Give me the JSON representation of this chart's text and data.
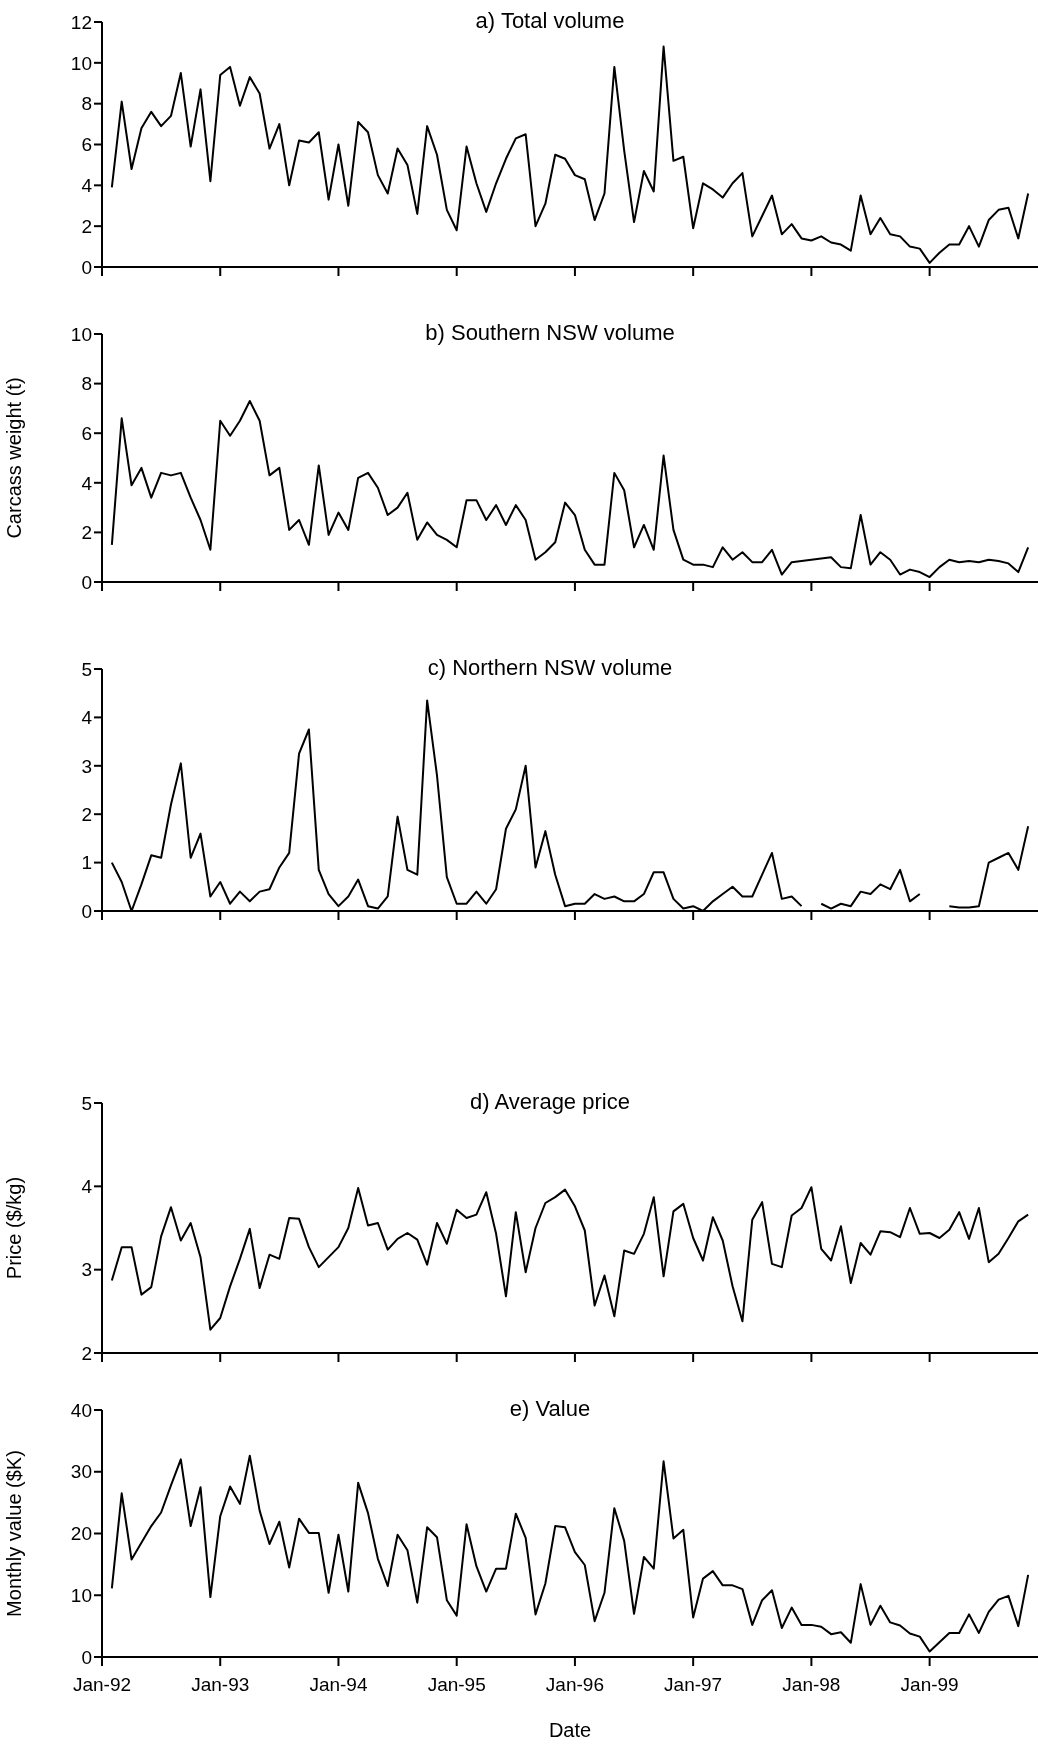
{
  "chart_data": [
    {
      "type": "line",
      "title": "a) Total volume",
      "color": "#000000",
      "tick_labels": "y",
      "x": [
        "1992-02",
        "1992-03",
        "1992-04",
        "1992-05",
        "1992-06",
        "1992-07",
        "1992-08",
        "1992-09",
        "1992-10",
        "1992-11",
        "1992-12",
        "1993-01",
        "1993-02",
        "1993-03",
        "1993-04",
        "1993-05",
        "1993-06",
        "1993-07",
        "1993-08",
        "1993-09",
        "1993-10",
        "1993-11",
        "1993-12",
        "1994-01",
        "1994-02",
        "1994-03",
        "1994-04",
        "1994-05",
        "1994-06",
        "1994-07",
        "1994-08",
        "1994-09",
        "1994-10",
        "1994-11",
        "1994-12",
        "1995-01",
        "1995-02",
        "1995-03",
        "1995-04",
        "1995-05",
        "1995-06",
        "1995-07",
        "1995-08",
        "1995-09",
        "1995-10",
        "1995-11",
        "1995-12",
        "1996-01",
        "1996-02",
        "1996-03",
        "1996-04",
        "1996-05",
        "1996-06",
        "1996-07",
        "1996-08",
        "1996-09",
        "1996-10",
        "1996-11",
        "1996-12",
        "1997-01",
        "1997-02",
        "1997-03",
        "1997-04",
        "1997-05",
        "1997-06",
        "1997-07",
        "1997-08",
        "1997-09",
        "1997-10",
        "1997-11",
        "1997-12",
        "1998-01",
        "1998-02",
        "1998-03",
        "1998-04",
        "1998-05",
        "1998-06",
        "1998-07",
        "1998-08",
        "1998-09",
        "1998-10",
        "1998-11",
        "1998-12",
        "1999-01",
        "1999-02",
        "1999-03",
        "1999-04",
        "1999-05",
        "1999-06",
        "1999-07",
        "1999-08",
        "1999-09",
        "1999-10",
        "1999-11"
      ],
      "values": [
        3.9,
        8.1,
        4.8,
        6.8,
        7.6,
        6.9,
        7.4,
        9.5,
        5.9,
        8.7,
        4.2,
        9.4,
        9.8,
        7.9,
        9.3,
        8.5,
        5.8,
        7.0,
        4.0,
        6.2,
        6.1,
        6.6,
        3.3,
        6.0,
        3.0,
        7.1,
        6.6,
        4.5,
        3.6,
        5.8,
        5.0,
        2.6,
        6.9,
        5.5,
        2.8,
        1.8,
        5.9,
        4.1,
        2.7,
        4.1,
        5.3,
        6.3,
        6.5,
        2.0,
        3.1,
        5.5,
        5.3,
        4.5,
        4.3,
        2.3,
        3.6,
        9.8,
        5.7,
        2.2,
        4.7,
        3.7,
        10.8,
        5.2,
        5.4,
        1.9,
        4.1,
        3.8,
        3.4,
        4.1,
        4.6,
        1.5,
        2.5,
        3.5,
        1.6,
        2.1,
        1.4,
        1.3,
        1.5,
        1.2,
        1.1,
        0.8,
        3.5,
        1.6,
        2.4,
        1.6,
        1.5,
        1.0,
        0.9,
        0.2,
        0.7,
        1.1,
        1.1,
        2.0,
        1.0,
        2.3,
        2.8,
        2.9,
        1.4,
        3.6
      ],
      "xlim": [
        "1992-01",
        "1999-12"
      ],
      "xticks": [
        {
          "value": "1992-01",
          "label": null
        },
        {
          "value": "1993-01",
          "label": null
        },
        {
          "value": "1994-01",
          "label": null
        },
        {
          "value": "1995-01",
          "label": null
        },
        {
          "value": "1996-01",
          "label": null
        },
        {
          "value": "1997-01",
          "label": null
        },
        {
          "value": "1998-01",
          "label": null
        },
        {
          "value": "1999-01",
          "label": null
        }
      ],
      "ylim": [
        0,
        12
      ],
      "yticks": [
        0,
        2,
        4,
        6,
        8,
        10,
        12
      ]
    },
    {
      "type": "line",
      "title": "b) Southern NSW volume",
      "ylabel": "Carcass weight (t)",
      "color": "#000000",
      "tick_labels": "y",
      "x": [
        "1992-02",
        "1992-03",
        "1992-04",
        "1992-05",
        "1992-06",
        "1992-07",
        "1992-08",
        "1992-09",
        "1992-10",
        "1992-11",
        "1992-12",
        "1993-01",
        "1993-02",
        "1993-03",
        "1993-04",
        "1993-05",
        "1993-06",
        "1993-07",
        "1993-08",
        "1993-09",
        "1993-10",
        "1993-11",
        "1993-12",
        "1994-01",
        "1994-02",
        "1994-03",
        "1994-04",
        "1994-05",
        "1994-06",
        "1994-07",
        "1994-08",
        "1994-09",
        "1994-10",
        "1994-11",
        "1994-12",
        "1995-01",
        "1995-02",
        "1995-03",
        "1995-04",
        "1995-05",
        "1995-06",
        "1995-07",
        "1995-08",
        "1995-09",
        "1995-10",
        "1995-11",
        "1995-12",
        "1996-01",
        "1996-02",
        "1996-03",
        "1996-04",
        "1996-05",
        "1996-06",
        "1996-07",
        "1996-08",
        "1996-09",
        "1996-10",
        "1996-11",
        "1996-12",
        "1997-01",
        "1997-02",
        "1997-03",
        "1997-04",
        "1997-05",
        "1997-06",
        "1997-07",
        "1997-08",
        "1997-09",
        "1997-10",
        "1997-11",
        "1997-12",
        "1998-01",
        "1998-02",
        "1998-03",
        "1998-04",
        "1998-05",
        "1998-06",
        "1998-07",
        "1998-08",
        "1998-09",
        "1998-10",
        "1998-11",
        "1998-12",
        "1999-01",
        "1999-02",
        "1999-03",
        "1999-04",
        "1999-05",
        "1999-06",
        "1999-07",
        "1999-08",
        "1999-09",
        "1999-10",
        "1999-11"
      ],
      "values": [
        1.5,
        6.6,
        3.9,
        4.6,
        3.4,
        4.4,
        4.3,
        4.4,
        3.4,
        2.5,
        1.3,
        6.5,
        5.9,
        6.5,
        7.3,
        6.5,
        4.3,
        4.6,
        2.1,
        2.5,
        1.5,
        4.7,
        1.9,
        2.8,
        2.1,
        4.2,
        4.4,
        3.8,
        2.7,
        3.0,
        3.6,
        1.7,
        2.4,
        1.9,
        1.7,
        1.4,
        3.3,
        3.3,
        2.5,
        3.1,
        2.3,
        3.1,
        2.5,
        0.9,
        1.2,
        1.6,
        3.2,
        2.7,
        1.3,
        0.7,
        0.7,
        4.4,
        3.7,
        1.4,
        2.3,
        1.3,
        5.1,
        2.1,
        0.9,
        0.7,
        0.7,
        0.6,
        1.4,
        0.9,
        1.2,
        0.8,
        0.8,
        1.3,
        0.3,
        0.8,
        0.85,
        0.9,
        0.95,
        1.0,
        0.6,
        0.55,
        2.7,
        0.7,
        1.2,
        0.9,
        0.3,
        0.5,
        0.4,
        0.2,
        0.6,
        0.9,
        0.8,
        0.85,
        0.8,
        0.9,
        0.85,
        0.75,
        0.4,
        1.4
      ],
      "xlim": [
        "1992-01",
        "1999-12"
      ],
      "xticks": [
        {
          "value": "1992-01",
          "label": null
        },
        {
          "value": "1993-01",
          "label": null
        },
        {
          "value": "1994-01",
          "label": null
        },
        {
          "value": "1995-01",
          "label": null
        },
        {
          "value": "1996-01",
          "label": null
        },
        {
          "value": "1997-01",
          "label": null
        },
        {
          "value": "1998-01",
          "label": null
        },
        {
          "value": "1999-01",
          "label": null
        }
      ],
      "ylim": [
        0,
        10
      ],
      "yticks": [
        0,
        2,
        4,
        6,
        8,
        10
      ]
    },
    {
      "type": "line",
      "title": "c) Northern NSW volume",
      "color": "#000000",
      "tick_labels": "y",
      "x": [
        "1992-02",
        "1992-03",
        "1992-04",
        "1992-05",
        "1992-06",
        "1992-07",
        "1992-08",
        "1992-09",
        "1992-10",
        "1992-11",
        "1992-12",
        "1993-01",
        "1993-02",
        "1993-03",
        "1993-04",
        "1993-05",
        "1993-06",
        "1993-07",
        "1993-08",
        "1993-09",
        "1993-10",
        "1993-11",
        "1993-12",
        "1994-01",
        "1994-02",
        "1994-03",
        "1994-04",
        "1994-05",
        "1994-06",
        "1994-07",
        "1994-08",
        "1994-09",
        "1994-10",
        "1994-11",
        "1994-12",
        "1995-01",
        "1995-02",
        "1995-03",
        "1995-04",
        "1995-05",
        "1995-06",
        "1995-07",
        "1995-08",
        "1995-09",
        "1995-10",
        "1995-11",
        "1995-12",
        "1996-01",
        "1996-02",
        "1996-03",
        "1996-04",
        "1996-05",
        "1996-06",
        "1996-07",
        "1996-08",
        "1996-09",
        "1996-10",
        "1996-11",
        "1996-12",
        "1997-01",
        "1997-02",
        "1997-03",
        "1997-04",
        "1997-05",
        "1997-06",
        "1997-07",
        "1997-08",
        "1997-09",
        "1997-10",
        "1997-11",
        "1997-12",
        "1998-01",
        "1998-02",
        "1998-03",
        "1998-04",
        "1998-05",
        "1998-06",
        "1998-07",
        "1998-08",
        "1998-09",
        "1998-10",
        "1998-11",
        "1998-12",
        "1999-01",
        "1999-02",
        "1999-03",
        "1999-04",
        "1999-05",
        "1999-06",
        "1999-07",
        "1999-08",
        "1999-09",
        "1999-10",
        "1999-11"
      ],
      "values": [
        1.0,
        0.6,
        0.0,
        0.55,
        1.15,
        1.1,
        2.2,
        3.05,
        1.1,
        1.6,
        0.3,
        0.6,
        0.15,
        0.4,
        0.2,
        0.4,
        0.45,
        0.9,
        1.2,
        3.25,
        3.75,
        0.85,
        0.35,
        0.1,
        0.3,
        0.65,
        0.1,
        0.05,
        0.3,
        1.95,
        0.85,
        0.75,
        4.35,
        2.8,
        0.7,
        0.15,
        0.15,
        0.4,
        0.15,
        0.45,
        1.7,
        2.1,
        3.0,
        0.9,
        1.65,
        0.75,
        0.1,
        0.15,
        0.15,
        0.35,
        0.25,
        0.3,
        0.2,
        0.2,
        0.35,
        0.8,
        0.8,
        0.25,
        0.05,
        0.1,
        0.0,
        0.2,
        0.35,
        0.5,
        0.3,
        0.3,
        0.75,
        1.2,
        0.25,
        0.3,
        0.1,
        null,
        0.15,
        0.05,
        0.15,
        0.1,
        0.4,
        0.35,
        0.55,
        0.45,
        0.85,
        0.2,
        0.35,
        null,
        null,
        0.1,
        0.07,
        0.07,
        0.1,
        1.0,
        1.1,
        1.2,
        0.85,
        1.75
      ],
      "xlim": [
        "1992-01",
        "1999-12"
      ],
      "xticks": [
        {
          "value": "1992-01",
          "label": null
        },
        {
          "value": "1993-01",
          "label": null
        },
        {
          "value": "1994-01",
          "label": null
        },
        {
          "value": "1995-01",
          "label": null
        },
        {
          "value": "1996-01",
          "label": null
        },
        {
          "value": "1997-01",
          "label": null
        },
        {
          "value": "1998-01",
          "label": null
        },
        {
          "value": "1999-01",
          "label": null
        }
      ],
      "ylim": [
        0,
        5
      ],
      "yticks": [
        0,
        1,
        2,
        3,
        4,
        5
      ]
    },
    {
      "type": "line",
      "title": "d) Average price",
      "ylabel": "Price ($/kg)",
      "color": "#000000",
      "tick_labels": "y",
      "x": [
        "1992-02",
        "1992-03",
        "1992-04",
        "1992-05",
        "1992-06",
        "1992-07",
        "1992-08",
        "1992-09",
        "1992-10",
        "1992-11",
        "1992-12",
        "1993-01",
        "1993-02",
        "1993-03",
        "1993-04",
        "1993-05",
        "1993-06",
        "1993-07",
        "1993-08",
        "1993-09",
        "1993-10",
        "1993-11",
        "1993-12",
        "1994-01",
        "1994-02",
        "1994-03",
        "1994-04",
        "1994-05",
        "1994-06",
        "1994-07",
        "1994-08",
        "1994-09",
        "1994-10",
        "1994-11",
        "1994-12",
        "1995-01",
        "1995-02",
        "1995-03",
        "1995-04",
        "1995-05",
        "1995-06",
        "1995-07",
        "1995-08",
        "1995-09",
        "1995-10",
        "1995-11",
        "1995-12",
        "1996-01",
        "1996-02",
        "1996-03",
        "1996-04",
        "1996-05",
        "1996-06",
        "1996-07",
        "1996-08",
        "1996-09",
        "1996-10",
        "1996-11",
        "1996-12",
        "1997-01",
        "1997-02",
        "1997-03",
        "1997-04",
        "1997-05",
        "1997-06",
        "1997-07",
        "1997-08",
        "1997-09",
        "1997-10",
        "1997-11",
        "1997-12",
        "1998-01",
        "1998-02",
        "1998-03",
        "1998-04",
        "1998-05",
        "1998-06",
        "1998-07",
        "1998-08",
        "1998-09",
        "1998-10",
        "1998-11",
        "1998-12",
        "1999-01",
        "1999-02",
        "1999-03",
        "1999-04",
        "1999-05",
        "1999-06",
        "1999-07",
        "1999-08",
        "1999-09",
        "1999-10",
        "1999-11"
      ],
      "values": [
        2.87,
        3.27,
        3.27,
        2.7,
        2.79,
        3.4,
        3.75,
        3.35,
        3.56,
        3.15,
        2.28,
        2.42,
        2.8,
        3.13,
        3.49,
        2.78,
        3.18,
        3.13,
        3.62,
        3.61,
        3.27,
        3.03,
        3.15,
        3.27,
        3.5,
        3.98,
        3.53,
        3.56,
        3.24,
        3.37,
        3.44,
        3.36,
        3.06,
        3.56,
        3.31,
        3.72,
        3.62,
        3.66,
        3.93,
        3.43,
        2.68,
        3.69,
        2.97,
        3.5,
        3.8,
        3.87,
        3.96,
        3.76,
        3.47,
        2.57,
        2.93,
        2.44,
        3.23,
        3.19,
        3.43,
        3.87,
        2.92,
        3.7,
        3.79,
        3.38,
        3.11,
        3.63,
        3.35,
        2.8,
        2.38,
        3.6,
        3.81,
        3.07,
        3.03,
        3.65,
        3.74,
        3.99,
        3.25,
        3.11,
        3.52,
        2.84,
        3.32,
        3.18,
        3.46,
        3.45,
        3.39,
        3.74,
        3.43,
        3.44,
        3.38,
        3.48,
        3.69,
        3.37,
        3.74,
        3.09,
        3.19,
        3.38,
        3.58,
        3.66
      ],
      "xlim": [
        "1992-01",
        "1999-12"
      ],
      "xticks": [
        {
          "value": "1992-01",
          "label": null
        },
        {
          "value": "1993-01",
          "label": null
        },
        {
          "value": "1994-01",
          "label": null
        },
        {
          "value": "1995-01",
          "label": null
        },
        {
          "value": "1996-01",
          "label": null
        },
        {
          "value": "1997-01",
          "label": null
        },
        {
          "value": "1998-01",
          "label": null
        },
        {
          "value": "1999-01",
          "label": null
        }
      ],
      "ylim": [
        2,
        5
      ],
      "yticks": [
        2,
        3,
        4,
        5
      ]
    },
    {
      "type": "line",
      "title": "e) Value",
      "xlabel": "Date",
      "ylabel": "Monthly value ($K)",
      "color": "#000000",
      "x": [
        "1992-02",
        "1992-03",
        "1992-04",
        "1992-05",
        "1992-06",
        "1992-07",
        "1992-08",
        "1992-09",
        "1992-10",
        "1992-11",
        "1992-12",
        "1993-01",
        "1993-02",
        "1993-03",
        "1993-04",
        "1993-05",
        "1993-06",
        "1993-07",
        "1993-08",
        "1993-09",
        "1993-10",
        "1993-11",
        "1993-12",
        "1994-01",
        "1994-02",
        "1994-03",
        "1994-04",
        "1994-05",
        "1994-06",
        "1994-07",
        "1994-08",
        "1994-09",
        "1994-10",
        "1994-11",
        "1994-12",
        "1995-01",
        "1995-02",
        "1995-03",
        "1995-04",
        "1995-05",
        "1995-06",
        "1995-07",
        "1995-08",
        "1995-09",
        "1995-10",
        "1995-11",
        "1995-12",
        "1996-01",
        "1996-02",
        "1996-03",
        "1996-04",
        "1996-05",
        "1996-06",
        "1996-07",
        "1996-08",
        "1996-09",
        "1996-10",
        "1996-11",
        "1996-12",
        "1997-01",
        "1997-02",
        "1997-03",
        "1997-04",
        "1997-05",
        "1997-06",
        "1997-07",
        "1997-08",
        "1997-09",
        "1997-10",
        "1997-11",
        "1997-12",
        "1998-01",
        "1998-02",
        "1998-03",
        "1998-04",
        "1998-05",
        "1998-06",
        "1998-07",
        "1998-08",
        "1998-09",
        "1998-10",
        "1998-11",
        "1998-12",
        "1999-01",
        "1999-02",
        "1999-03",
        "1999-04",
        "1999-05",
        "1999-06",
        "1999-07",
        "1999-08",
        "1999-09",
        "1999-10",
        "1999-11"
      ],
      "values": [
        11.1,
        26.5,
        15.8,
        18.5,
        21.2,
        23.4,
        27.8,
        32.0,
        21.2,
        27.5,
        9.7,
        22.8,
        27.6,
        24.8,
        32.6,
        23.7,
        18.3,
        21.9,
        14.5,
        22.4,
        20.1,
        20.1,
        10.4,
        19.8,
        10.6,
        28.2,
        23.3,
        15.9,
        11.5,
        19.8,
        17.3,
        8.8,
        21.0,
        19.4,
        9.2,
        6.7,
        21.5,
        14.7,
        10.6,
        14.3,
        14.3,
        23.2,
        19.3,
        6.9,
        11.9,
        21.2,
        21.0,
        17.0,
        14.9,
        5.8,
        10.4,
        24.1,
        18.8,
        7.0,
        16.2,
        14.3,
        31.7,
        19.2,
        20.6,
        6.4,
        12.7,
        13.9,
        11.6,
        11.6,
        11.0,
        5.2,
        9.2,
        10.8,
        4.7,
        8.0,
        5.2,
        5.2,
        4.9,
        3.7,
        4.0,
        2.3,
        11.8,
        5.2,
        8.3,
        5.6,
        5.1,
        3.8,
        3.3,
        0.9,
        2.4,
        3.9,
        3.9,
        6.9,
        3.9,
        7.3,
        9.3,
        9.9,
        5.0,
        13.3
      ],
      "xlim": [
        "1992-01",
        "1999-12"
      ],
      "xticks": [
        {
          "value": "1992-01",
          "label": "Jan-92"
        },
        {
          "value": "1993-01",
          "label": "Jan-93"
        },
        {
          "value": "1994-01",
          "label": "Jan-94"
        },
        {
          "value": "1995-01",
          "label": "Jan-95"
        },
        {
          "value": "1996-01",
          "label": "Jan-96"
        },
        {
          "value": "1997-01",
          "label": "Jan-97"
        },
        {
          "value": "1998-01",
          "label": "Jan-98"
        },
        {
          "value": "1999-01",
          "label": "Jan-99"
        }
      ],
      "ylim": [
        0,
        40
      ],
      "yticks": [
        0,
        10,
        20,
        30,
        40
      ]
    }
  ]
}
